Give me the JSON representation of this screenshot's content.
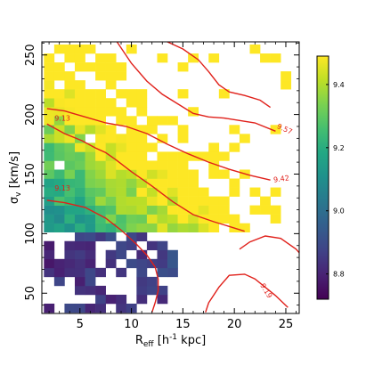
{
  "chart_data": {
    "type": "heatmap",
    "title": "",
    "xlabel": "R",
    "xlabel_sub": "eff",
    "xlabel_unit": " [h",
    "xlabel_sup": "-1",
    "xlabel_tail": " kpc]",
    "ylabel": "σ",
    "ylabel_sub": "v",
    "ylabel_unit": " [km/s]",
    "xlim": [
      1.3,
      26.3
    ],
    "ylim": [
      33,
      261
    ],
    "xticks": [
      5,
      10,
      15,
      20,
      25
    ],
    "yticks": [
      50,
      100,
      150,
      200,
      250
    ],
    "grid": false,
    "colorbar": {
      "range": [
        8.72,
        9.49
      ],
      "ticks": [
        8.8,
        9.0,
        9.2,
        9.4
      ],
      "colormap": "viridis",
      "position": "right"
    },
    "cells": {
      "x_start": 2.0,
      "x_step": 1.0,
      "y_start": 37.5,
      "y_step": 7.5,
      "columns": 24,
      "rows": 30,
      "fill_rule": "value ≈ 9.02 + 0.0262*x + 0.0034*(y-100), clipped to colorbar range; low-sigma region (σ<100) is dark with sparse cells"
    },
    "contours": [
      {
        "label": "9.57",
        "color": "#e0201a",
        "points": [
          [
            8.6,
            261
          ],
          [
            10,
            243
          ],
          [
            11.5,
            228
          ],
          [
            13,
            217
          ],
          [
            14.5,
            209
          ],
          [
            16,
            201
          ],
          [
            17.5,
            198
          ],
          [
            19,
            197
          ],
          [
            20.5,
            195
          ],
          [
            22,
            193
          ],
          [
            24,
            186
          ]
        ]
      },
      {
        "label": "9.42",
        "color": "#e0201a",
        "points": [
          [
            1.8,
            205
          ],
          [
            3.5,
            203
          ],
          [
            5.5,
            198
          ],
          [
            7.5,
            193
          ],
          [
            9.5,
            190
          ],
          [
            11.5,
            184
          ],
          [
            13.5,
            175
          ],
          [
            15.5,
            167
          ],
          [
            17.5,
            160
          ],
          [
            19.5,
            154
          ],
          [
            21.5,
            149
          ],
          [
            23.5,
            145
          ]
        ]
      },
      {
        "label": "9.13",
        "color": "#e0201a",
        "points": [
          [
            1.8,
            192
          ],
          [
            3.5,
            184
          ],
          [
            5.2,
            178
          ],
          [
            6.5,
            172
          ],
          [
            7.5,
            168
          ],
          [
            8.5,
            162
          ],
          [
            10,
            152
          ],
          [
            12,
            140
          ],
          [
            14,
            127
          ],
          [
            16,
            116
          ],
          [
            18,
            110
          ],
          [
            19.5,
            106
          ],
          [
            21,
            102
          ]
        ]
      },
      {
        "label": "9.19",
        "color": "#e0201a",
        "points": [
          [
            17.2,
            34
          ],
          [
            17.5,
            42
          ],
          [
            18.5,
            55
          ],
          [
            19.5,
            65
          ],
          [
            21,
            66
          ],
          [
            22,
            62
          ],
          [
            24,
            48
          ],
          [
            25.2,
            38
          ]
        ]
      },
      {
        "label": "",
        "color": "#e0201a",
        "points": [
          [
            1.8,
            128
          ],
          [
            3.5,
            126
          ],
          [
            5.5,
            122
          ],
          [
            7.5,
            113
          ],
          [
            9,
            103
          ],
          [
            10.5,
            91
          ],
          [
            11.5,
            82
          ],
          [
            12.3,
            72
          ],
          [
            12.6,
            62
          ],
          [
            12.6,
            52
          ],
          [
            12.3,
            42
          ],
          [
            12,
            34
          ]
        ]
      },
      {
        "label": "",
        "color": "#e0201a",
        "points": [
          [
            13.5,
            261
          ],
          [
            15,
            255
          ],
          [
            16.5,
            246
          ],
          [
            17.5,
            236
          ],
          [
            18.5,
            225
          ],
          [
            19.5,
            219
          ],
          [
            21,
            216
          ],
          [
            22.5,
            212
          ],
          [
            23.5,
            206
          ]
        ]
      },
      {
        "label": "",
        "color": "#e0201a",
        "points": [
          [
            20.5,
            87
          ],
          [
            21.5,
            93
          ],
          [
            23,
            98
          ],
          [
            24.5,
            96
          ],
          [
            26,
            87
          ],
          [
            26.3,
            84
          ]
        ]
      }
    ]
  }
}
